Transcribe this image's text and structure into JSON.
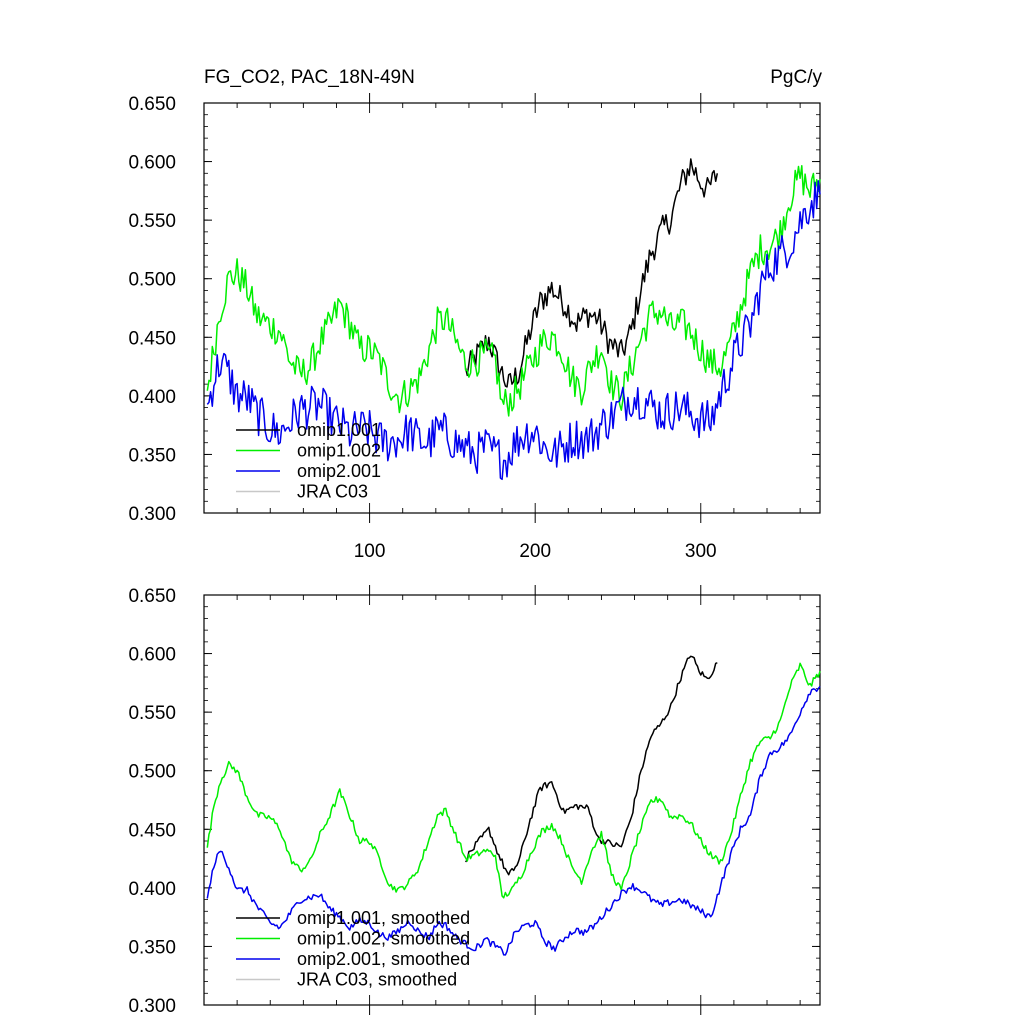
{
  "chart_data": [
    {
      "type": "line",
      "title": "FG_CO2, PAC_18N-49N",
      "units": "PgC/y",
      "xlim": [
        0,
        372
      ],
      "ylim": [
        0.3,
        0.65
      ],
      "x_ticks": [
        100,
        200,
        300
      ],
      "x_tick_labels": [
        "100",
        "200",
        "300"
      ],
      "y_ticks": [
        0.3,
        0.35,
        0.4,
        0.45,
        0.5,
        0.55,
        0.6,
        0.65
      ],
      "y_tick_labels": [
        "0.300",
        "0.350",
        "0.400",
        "0.450",
        "0.500",
        "0.550",
        "0.600",
        "0.650"
      ],
      "legend_position": "bottom-left",
      "series": [
        {
          "name": "omip1.001",
          "color": "#000000",
          "noise": 0.012,
          "x": [
            158,
            165,
            172,
            178,
            184,
            190,
            197,
            203,
            210,
            217,
            225,
            232,
            238,
            245,
            252,
            258,
            264,
            270,
            276,
            282,
            288,
            294,
            299,
            304,
            310
          ],
          "y": [
            0.42,
            0.435,
            0.448,
            0.425,
            0.408,
            0.42,
            0.455,
            0.48,
            0.492,
            0.48,
            0.462,
            0.47,
            0.466,
            0.445,
            0.436,
            0.455,
            0.492,
            0.522,
            0.54,
            0.552,
            0.58,
            0.598,
            0.585,
            0.575,
            0.59
          ]
        },
        {
          "name": "omip1.002",
          "color": "#00ee00",
          "noise": 0.014,
          "x": [
            2,
            6,
            10,
            15,
            20,
            26,
            32,
            40,
            46,
            52,
            58,
            64,
            70,
            76,
            82,
            88,
            94,
            100,
            106,
            112,
            118,
            124,
            130,
            136,
            141,
            146,
            152,
            158,
            164,
            170,
            176,
            180,
            186,
            192,
            198,
            204,
            210,
            216,
            222,
            228,
            234,
            240,
            246,
            252,
            258,
            264,
            270,
            276,
            282,
            288,
            294,
            300,
            306,
            312,
            318,
            324,
            330,
            336,
            342,
            348,
            354,
            360,
            366,
            372
          ],
          "y": [
            0.405,
            0.44,
            0.475,
            0.5,
            0.505,
            0.492,
            0.468,
            0.46,
            0.455,
            0.43,
            0.418,
            0.425,
            0.445,
            0.46,
            0.478,
            0.462,
            0.44,
            0.44,
            0.43,
            0.41,
            0.398,
            0.405,
            0.415,
            0.44,
            0.462,
            0.466,
            0.446,
            0.428,
            0.43,
            0.435,
            0.43,
            0.392,
            0.398,
            0.412,
            0.43,
            0.445,
            0.452,
            0.44,
            0.415,
            0.406,
            0.428,
            0.442,
            0.41,
            0.4,
            0.425,
            0.45,
            0.47,
            0.472,
            0.458,
            0.462,
            0.455,
            0.44,
            0.428,
            0.425,
            0.445,
            0.475,
            0.505,
            0.525,
            0.528,
            0.54,
            0.57,
            0.588,
            0.575,
            0.585
          ]
        },
        {
          "name": "omip2.001",
          "color": "#0000ee",
          "noise": 0.018,
          "x": [
            2,
            6,
            10,
            15,
            20,
            26,
            32,
            40,
            46,
            52,
            58,
            64,
            70,
            76,
            82,
            88,
            94,
            100,
            106,
            112,
            118,
            124,
            130,
            136,
            141,
            146,
            152,
            158,
            164,
            170,
            176,
            182,
            188,
            194,
            200,
            206,
            212,
            218,
            224,
            230,
            236,
            240,
            246,
            252,
            258,
            264,
            270,
            276,
            282,
            288,
            294,
            300,
            306,
            312,
            318,
            324,
            330,
            336,
            342,
            348,
            354,
            360,
            366,
            372
          ],
          "y": [
            0.388,
            0.415,
            0.43,
            0.418,
            0.4,
            0.398,
            0.385,
            0.372,
            0.368,
            0.378,
            0.388,
            0.39,
            0.392,
            0.382,
            0.375,
            0.368,
            0.372,
            0.37,
            0.362,
            0.36,
            0.364,
            0.37,
            0.362,
            0.36,
            0.37,
            0.368,
            0.36,
            0.355,
            0.35,
            0.356,
            0.35,
            0.345,
            0.36,
            0.368,
            0.37,
            0.355,
            0.35,
            0.358,
            0.365,
            0.362,
            0.368,
            0.375,
            0.382,
            0.392,
            0.4,
            0.398,
            0.392,
            0.385,
            0.388,
            0.39,
            0.385,
            0.38,
            0.378,
            0.402,
            0.425,
            0.445,
            0.46,
            0.492,
            0.512,
            0.52,
            0.53,
            0.548,
            0.565,
            0.572
          ]
        },
        {
          "name": "JRA C03",
          "color": "#c8c8c8",
          "x": [],
          "y": []
        }
      ]
    },
    {
      "type": "line",
      "xlim": [
        0,
        372
      ],
      "ylim": [
        0.3,
        0.65
      ],
      "y_ticks": [
        0.3,
        0.35,
        0.4,
        0.45,
        0.5,
        0.55,
        0.6,
        0.65
      ],
      "y_tick_labels": [
        "0.300",
        "0.350",
        "0.400",
        "0.450",
        "0.500",
        "0.550",
        "0.600",
        "0.650"
      ],
      "legend_position": "bottom-left",
      "series": [
        {
          "name": "omip1.001, smoothed",
          "color": "#000000",
          "noise": 0.003,
          "x": [
            158,
            165,
            172,
            178,
            184,
            190,
            197,
            203,
            210,
            217,
            225,
            232,
            238,
            245,
            252,
            258,
            264,
            270,
            276,
            282,
            288,
            294,
            299,
            304,
            310
          ],
          "y": [
            0.425,
            0.438,
            0.45,
            0.428,
            0.41,
            0.422,
            0.458,
            0.485,
            0.49,
            0.465,
            0.47,
            0.468,
            0.442,
            0.438,
            0.435,
            0.46,
            0.5,
            0.53,
            0.54,
            0.555,
            0.58,
            0.6,
            0.585,
            0.578,
            0.592
          ]
        },
        {
          "name": "omip1.002, smoothed",
          "color": "#00ee00",
          "noise": 0.003,
          "x": [
            2,
            6,
            10,
            15,
            20,
            26,
            32,
            40,
            46,
            52,
            58,
            64,
            70,
            76,
            82,
            88,
            94,
            100,
            106,
            112,
            118,
            124,
            130,
            136,
            141,
            146,
            152,
            158,
            164,
            170,
            176,
            180,
            186,
            192,
            198,
            204,
            210,
            216,
            222,
            228,
            234,
            240,
            246,
            252,
            258,
            264,
            270,
            276,
            282,
            288,
            294,
            300,
            306,
            312,
            318,
            324,
            330,
            336,
            342,
            348,
            354,
            360,
            366,
            372
          ],
          "y": [
            0.435,
            0.47,
            0.492,
            0.505,
            0.5,
            0.478,
            0.462,
            0.46,
            0.45,
            0.425,
            0.415,
            0.422,
            0.445,
            0.462,
            0.482,
            0.462,
            0.44,
            0.44,
            0.425,
            0.402,
            0.398,
            0.405,
            0.418,
            0.442,
            0.462,
            0.466,
            0.445,
            0.425,
            0.428,
            0.432,
            0.428,
            0.392,
            0.398,
            0.412,
            0.432,
            0.448,
            0.454,
            0.44,
            0.418,
            0.406,
            0.432,
            0.446,
            0.412,
            0.398,
            0.425,
            0.452,
            0.474,
            0.476,
            0.46,
            0.462,
            0.455,
            0.44,
            0.428,
            0.422,
            0.445,
            0.478,
            0.508,
            0.525,
            0.528,
            0.542,
            0.572,
            0.59,
            0.572,
            0.585
          ]
        },
        {
          "name": "omip2.001, smoothed",
          "color": "#0000ee",
          "noise": 0.003,
          "x": [
            2,
            6,
            10,
            15,
            20,
            26,
            32,
            40,
            46,
            52,
            58,
            64,
            70,
            76,
            82,
            88,
            94,
            100,
            106,
            112,
            118,
            124,
            130,
            136,
            141,
            146,
            152,
            158,
            164,
            170,
            176,
            182,
            188,
            194,
            200,
            206,
            212,
            218,
            224,
            230,
            236,
            240,
            246,
            252,
            258,
            264,
            270,
            276,
            282,
            288,
            294,
            300,
            306,
            312,
            318,
            324,
            330,
            336,
            342,
            348,
            354,
            360,
            366,
            372
          ],
          "y": [
            0.39,
            0.42,
            0.432,
            0.418,
            0.398,
            0.398,
            0.384,
            0.37,
            0.366,
            0.378,
            0.39,
            0.392,
            0.394,
            0.382,
            0.375,
            0.366,
            0.372,
            0.37,
            0.36,
            0.358,
            0.364,
            0.372,
            0.362,
            0.358,
            0.37,
            0.368,
            0.358,
            0.352,
            0.348,
            0.356,
            0.35,
            0.344,
            0.362,
            0.368,
            0.37,
            0.354,
            0.348,
            0.358,
            0.364,
            0.362,
            0.368,
            0.375,
            0.385,
            0.395,
            0.402,
            0.398,
            0.39,
            0.385,
            0.388,
            0.39,
            0.385,
            0.38,
            0.375,
            0.402,
            0.428,
            0.45,
            0.462,
            0.495,
            0.515,
            0.52,
            0.53,
            0.55,
            0.568,
            0.572
          ]
        },
        {
          "name": "JRA C03, smoothed",
          "color": "#c8c8c8",
          "x": [],
          "y": []
        }
      ]
    }
  ]
}
